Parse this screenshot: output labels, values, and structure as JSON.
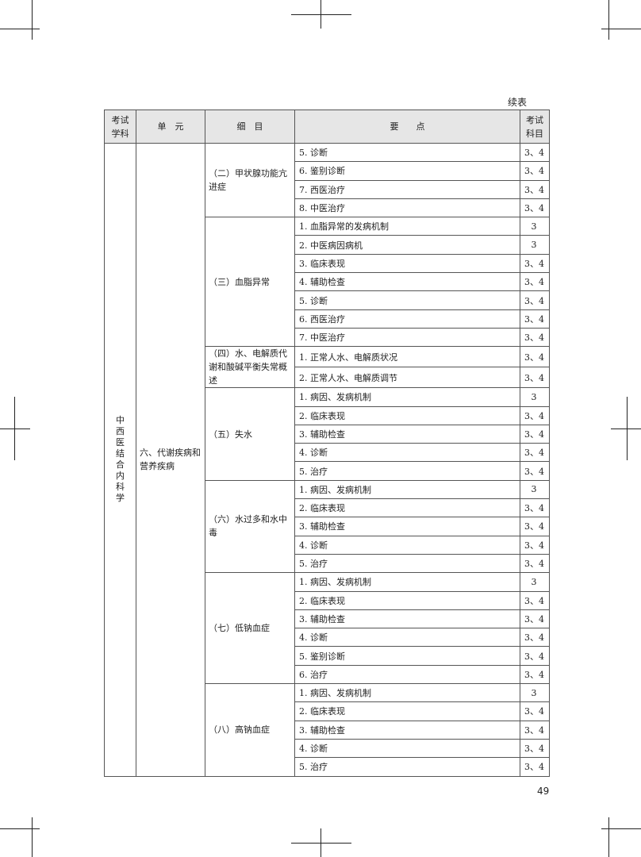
{
  "continued_label": "续表",
  "page_number": "49",
  "table": {
    "headers": [
      "考试\n学科",
      "单　元",
      "细　目",
      "要　　点",
      "考试\n科目"
    ],
    "subject": "中\n西\n医\n结\n合\n内\n科\n学",
    "unit": "六、代谢疾病和营养疾病",
    "sections": [
      {
        "title": "（二）甲状腺功能亢进症",
        "items": [
          [
            "5. 诊断",
            "3、4"
          ],
          [
            "6. 鉴别诊断",
            "3、4"
          ],
          [
            "7. 西医治疗",
            "3、4"
          ],
          [
            "8. 中医治疗",
            "3、4"
          ]
        ]
      },
      {
        "title": "（三）血脂异常",
        "items": [
          [
            "1. 血脂异常的发病机制",
            "3"
          ],
          [
            "2. 中医病因病机",
            "3"
          ],
          [
            "3. 临床表现",
            "3、4"
          ],
          [
            "4. 辅助检查",
            "3、4"
          ],
          [
            "5. 诊断",
            "3、4"
          ],
          [
            "6. 西医治疗",
            "3、4"
          ],
          [
            "7. 中医治疗",
            "3、4"
          ]
        ]
      },
      {
        "title": "（四）水、电解质代谢和酸碱平衡失常概述",
        "items": [
          [
            "1. 正常人水、电解质状况",
            "3、4"
          ],
          [
            "2. 正常人水、电解质调节",
            "3、4"
          ]
        ]
      },
      {
        "title": "（五）失水",
        "items": [
          [
            "1. 病因、发病机制",
            "3"
          ],
          [
            "2. 临床表现",
            "3、4"
          ],
          [
            "3. 辅助检查",
            "3、4"
          ],
          [
            "4. 诊断",
            "3、4"
          ],
          [
            "5. 治疗",
            "3、4"
          ]
        ]
      },
      {
        "title": "（六）水过多和水中毒",
        "items": [
          [
            "1. 病因、发病机制",
            "3"
          ],
          [
            "2. 临床表现",
            "3、4"
          ],
          [
            "3. 辅助检查",
            "3、4"
          ],
          [
            "4. 诊断",
            "3、4"
          ],
          [
            "5. 治疗",
            "3、4"
          ]
        ]
      },
      {
        "title": "（七）低钠血症",
        "items": [
          [
            "1. 病因、发病机制",
            "3"
          ],
          [
            "2. 临床表现",
            "3、4"
          ],
          [
            "3. 辅助检查",
            "3、4"
          ],
          [
            "4. 诊断",
            "3、4"
          ],
          [
            "5. 鉴别诊断",
            "3、4"
          ],
          [
            "6. 治疗",
            "3、4"
          ]
        ]
      },
      {
        "title": "（八）高钠血症",
        "items": [
          [
            "1. 病因、发病机制",
            "3"
          ],
          [
            "2. 临床表现",
            "3、4"
          ],
          [
            "3. 辅助检查",
            "3、4"
          ],
          [
            "4. 诊断",
            "3、4"
          ],
          [
            "5. 治疗",
            "3、4"
          ]
        ]
      }
    ]
  }
}
